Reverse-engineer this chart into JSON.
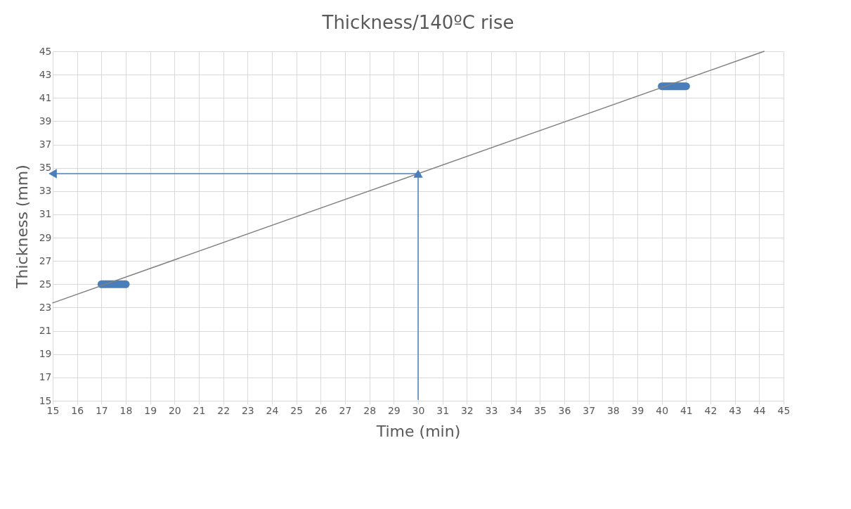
{
  "chart_data": {
    "type": "line",
    "title": "Thickness/140ºC rise",
    "xlabel": "Time (min)",
    "ylabel": "Thickness (mm)",
    "xlim": [
      15,
      45
    ],
    "xticks": [
      15,
      16,
      17,
      18,
      19,
      20,
      21,
      22,
      23,
      24,
      25,
      26,
      27,
      28,
      29,
      30,
      31,
      32,
      33,
      34,
      35,
      36,
      37,
      38,
      39,
      40,
      41,
      42,
      43,
      44,
      45
    ],
    "ylim": [
      15,
      45
    ],
    "yticks": [
      15,
      17,
      19,
      21,
      23,
      25,
      27,
      29,
      31,
      33,
      35,
      37,
      39,
      41,
      43,
      45
    ],
    "grid": true,
    "series": [
      {
        "color": "#4a7ebb",
        "x": [
          17,
          18
        ],
        "values": [
          25,
          25
        ]
      },
      {
        "color": "#4a7ebb",
        "x": [
          40,
          41
        ],
        "values": [
          42,
          42
        ]
      },
      {
        "color": "#808080",
        "x": [
          15,
          44.2
        ],
        "values": [
          23.4,
          45
        ]
      },
      {
        "color": "#4a7ebb",
        "x": [
          30,
          30
        ],
        "values": [
          15.1,
          34.5
        ],
        "marker": "triangle"
      },
      {
        "color": "#4a7ebb",
        "x": [
          30,
          15
        ],
        "values": [
          34.5,
          34.5
        ],
        "marker": "triangle"
      }
    ]
  }
}
